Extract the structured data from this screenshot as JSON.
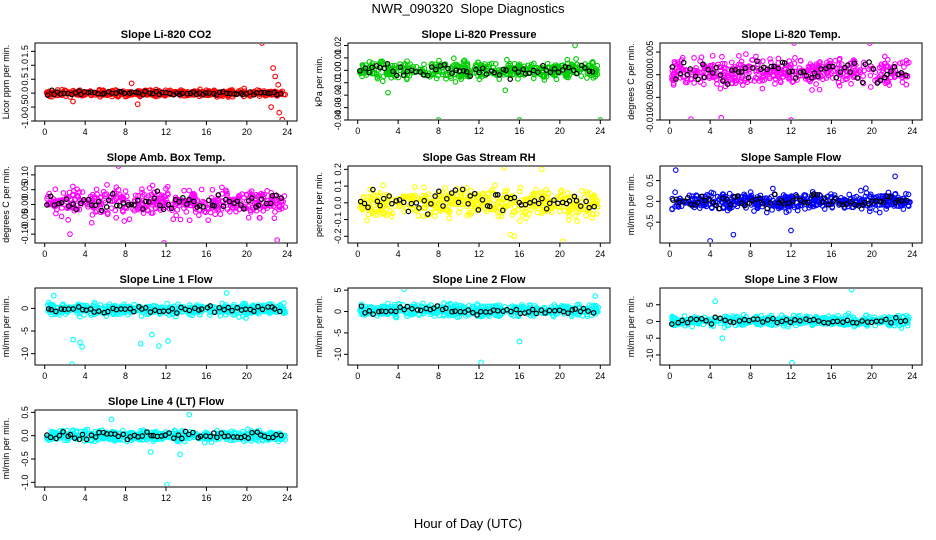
{
  "figure": {
    "title": "NWR_090320  Slope Diagnostics",
    "xlabel": "Hour of Day (UTC)"
  },
  "chart_data": [
    {
      "type": "scatter",
      "title": "Slope Li-820 CO2",
      "ylabel": "Licor ppm per min.",
      "xlim": [
        0,
        24
      ],
      "ylim": [
        -1.0,
        1.8
      ],
      "xticks": [
        "0",
        "4",
        "8",
        "12",
        "16",
        "20",
        "24"
      ],
      "yticks": [
        -1.0,
        -0.5,
        0.0,
        0.5,
        1.0,
        1.5
      ],
      "ytick_labels": [
        "-1.0",
        "-0.5",
        "0.0",
        "0.5",
        "1.0",
        "1.5"
      ],
      "color": "#ff0000",
      "highlight_color": "#000000",
      "band": {
        "center": 0.0,
        "spread": 0.2,
        "count": 520
      },
      "highlight_points": 70,
      "outliers": [
        [
          21.5,
          1.8
        ],
        [
          22.6,
          0.9
        ],
        [
          22.8,
          0.6
        ],
        [
          23.2,
          -0.7
        ],
        [
          23.5,
          -0.95
        ],
        [
          23.1,
          0.3
        ],
        [
          9.2,
          -0.4
        ],
        [
          8.6,
          0.35
        ],
        [
          2.8,
          -0.3
        ],
        [
          22.4,
          -0.5
        ]
      ]
    },
    {
      "type": "scatter",
      "title": "Slope Li-820 Pressure",
      "ylabel": "kPa per min.",
      "xlim": [
        0,
        24
      ],
      "ylim": [
        -0.04,
        0.022
      ],
      "xticks": [
        "0",
        "4",
        "8",
        "12",
        "16",
        "20",
        "24"
      ],
      "yticks": [
        -0.04,
        -0.03,
        -0.02,
        -0.01,
        0.0,
        0.01,
        0.02
      ],
      "ytick_labels": [
        "-0.04",
        "-0.03",
        "-0.02",
        "-0.01",
        "0.00",
        "0.01",
        "0.02"
      ],
      "color": "#00cc00",
      "highlight_color": "#000000",
      "band": {
        "center": 0.0,
        "spread": 0.012,
        "count": 430
      },
      "highlight_points": 60,
      "outliers": [
        [
          8.0,
          -0.04
        ],
        [
          16.0,
          -0.04
        ],
        [
          24.0,
          -0.04
        ],
        [
          21.5,
          0.02
        ],
        [
          3.0,
          -0.018
        ],
        [
          14.6,
          -0.016
        ]
      ]
    },
    {
      "type": "scatter",
      "title": "Slope Li-820 Temp.",
      "ylabel": "degrees C per min.",
      "xlim": [
        0,
        24
      ],
      "ylim": [
        -0.01,
        0.007
      ],
      "xticks": [
        "0",
        "4",
        "8",
        "12",
        "16",
        "20",
        "24"
      ],
      "yticks": [
        -0.01,
        -0.005,
        0.0,
        0.005
      ],
      "ytick_labels": [
        "-0.010",
        "-0.005",
        "0.000",
        "0.005"
      ],
      "color": "#ff00ff",
      "highlight_color": "#000000",
      "band": {
        "center": 0.0005,
        "spread": 0.0055,
        "count": 440
      },
      "highlight_points": 65,
      "outliers": [
        [
          12.0,
          -0.01
        ],
        [
          19.8,
          0.007
        ],
        [
          12.3,
          0.007
        ],
        [
          5.1,
          -0.0095
        ],
        [
          2.1,
          -0.0098
        ]
      ]
    },
    {
      "type": "scatter",
      "title": "Slope Amb. Box Temp.",
      "ylabel": "degrees C per min.",
      "xlim": [
        0,
        24
      ],
      "ylim": [
        -0.13,
        0.13
      ],
      "xticks": [
        "0",
        "4",
        "8",
        "12",
        "16",
        "20",
        "24"
      ],
      "yticks": [
        -0.1,
        -0.05,
        0.0,
        0.05,
        0.1
      ],
      "ytick_labels": [
        "-0.10",
        "-0.05",
        "0.00",
        "0.05",
        "0.10"
      ],
      "color": "#ff00ff",
      "highlight_color": "#000000",
      "band": {
        "center": 0.005,
        "spread": 0.08,
        "count": 450
      },
      "highlight_points": 65,
      "outliers": [
        [
          7.3,
          0.13
        ],
        [
          11.8,
          -0.13
        ],
        [
          23.0,
          -0.12
        ],
        [
          2.5,
          -0.1
        ]
      ]
    },
    {
      "type": "scatter",
      "title": "Slope Gas Stream RH",
      "ylabel": "percent per min.",
      "xlim": [
        0,
        24
      ],
      "ylim": [
        -0.24,
        0.22
      ],
      "xticks": [
        "0",
        "4",
        "8",
        "12",
        "16",
        "20",
        "24"
      ],
      "yticks": [
        -0.2,
        -0.1,
        0.0,
        0.1,
        0.2
      ],
      "ytick_labels": [
        "-0.2",
        "-0.1",
        "0.0",
        "0.1",
        "0.2"
      ],
      "color": "#ffff00",
      "highlight_color": "#000000",
      "band": {
        "center": 0.0,
        "spread": 0.15,
        "count": 470
      },
      "highlight_points": 60,
      "outliers": [
        [
          15.5,
          -0.2
        ],
        [
          15.1,
          -0.19
        ],
        [
          20.3,
          -0.23
        ],
        [
          14.5,
          0.21
        ],
        [
          18.2,
          0.2
        ]
      ]
    },
    {
      "type": "scatter",
      "title": "Slope Sample Flow",
      "ylabel": "ml/min per min.",
      "xlim": [
        0,
        24
      ],
      "ylim": [
        -1.0,
        0.85
      ],
      "xticks": [
        "0",
        "4",
        "8",
        "12",
        "16",
        "20",
        "24"
      ],
      "yticks": [
        -0.5,
        0.0,
        0.5
      ],
      "ytick_labels": [
        "-0.5",
        "0.0",
        "0.5"
      ],
      "color": "#0000ff",
      "highlight_color": "#000000",
      "band": {
        "center": 0.0,
        "spread": 0.38,
        "count": 480
      },
      "highlight_points": 65,
      "outliers": [
        [
          0.6,
          0.75
        ],
        [
          4.0,
          -0.95
        ],
        [
          6.3,
          -0.8
        ],
        [
          22.3,
          0.6
        ],
        [
          12.0,
          -0.7
        ]
      ]
    },
    {
      "type": "scatter",
      "title": "Slope Line 1 Flow",
      "ylabel": "ml/min per min.",
      "xlim": [
        0,
        24
      ],
      "ylim": [
        -12.5,
        4.5
      ],
      "xticks": [
        "0",
        "4",
        "8",
        "12",
        "16",
        "20",
        "24"
      ],
      "yticks": [
        -10,
        -5,
        0
      ],
      "ytick_labels": [
        "-10",
        "-5",
        "0"
      ],
      "color": "#00ffff",
      "highlight_color": "#000000",
      "band": {
        "center": -0.3,
        "spread": 2.2,
        "count": 500
      },
      "highlight_points": 55,
      "outliers": [
        [
          2.7,
          -12.3
        ],
        [
          3.5,
          -7.5
        ],
        [
          3.7,
          -8.5
        ],
        [
          2.8,
          -6.9
        ],
        [
          0.9,
          2.8
        ],
        [
          18.0,
          3.4
        ],
        [
          12.2,
          -7.2
        ],
        [
          11.3,
          -8.3
        ],
        [
          9.5,
          -7.8
        ],
        [
          10.6,
          -5.8
        ]
      ]
    },
    {
      "type": "scatter",
      "title": "Slope Line 2 Flow",
      "ylabel": "ml/min per min.",
      "xlim": [
        0,
        24
      ],
      "ylim": [
        -12.5,
        5.5
      ],
      "xticks": [
        "0",
        "4",
        "8",
        "12",
        "16",
        "20",
        "24"
      ],
      "yticks": [
        -10,
        -5,
        0,
        5
      ],
      "ytick_labels": [
        "-10",
        "-5",
        "0",
        "5"
      ],
      "color": "#00ffff",
      "highlight_color": "#000000",
      "band": {
        "center": 0.2,
        "spread": 2.4,
        "count": 500
      },
      "highlight_points": 55,
      "outliers": [
        [
          12.2,
          -11.9
        ],
        [
          16.0,
          -7.0
        ],
        [
          4.6,
          5.2
        ],
        [
          23.5,
          3.6
        ]
      ]
    },
    {
      "type": "scatter",
      "title": "Slope Line 3 Flow",
      "ylabel": "ml/min per min.",
      "xlim": [
        0,
        24
      ],
      "ylim": [
        -13.0,
        10.0
      ],
      "xticks": [
        "0",
        "4",
        "8",
        "12",
        "16",
        "20",
        "24"
      ],
      "yticks": [
        -10,
        -5,
        0,
        5
      ],
      "ytick_labels": [
        "-10",
        "-5",
        "0",
        "5"
      ],
      "color": "#00ffff",
      "highlight_color": "#000000",
      "band": {
        "center": 0.2,
        "spread": 2.6,
        "count": 480
      },
      "highlight_points": 50,
      "outliers": [
        [
          12.1,
          -12.3
        ],
        [
          18.0,
          9.5
        ],
        [
          4.5,
          6.0
        ],
        [
          5.2,
          -5.0
        ]
      ]
    },
    {
      "type": "scatter",
      "title": "Slope Line 4 (LT) Flow",
      "ylabel": "ml/min per min.",
      "xlim": [
        0,
        24
      ],
      "ylim": [
        -1.1,
        0.55
      ],
      "xticks": [
        "0",
        "4",
        "8",
        "12",
        "16",
        "20",
        "24"
      ],
      "yticks": [
        -1.0,
        -0.5,
        0.0,
        0.5
      ],
      "ytick_labels": [
        "-1.0",
        "-0.5",
        "0.0",
        "0.5"
      ],
      "color": "#00ffff",
      "highlight_color": "#000000",
      "band": {
        "center": 0.0,
        "spread": 0.2,
        "count": 520
      },
      "highlight_points": 60,
      "outliers": [
        [
          12.1,
          -1.05
        ],
        [
          14.3,
          0.45
        ],
        [
          6.6,
          0.35
        ],
        [
          10.5,
          -0.35
        ],
        [
          13.4,
          -0.4
        ]
      ]
    }
  ]
}
